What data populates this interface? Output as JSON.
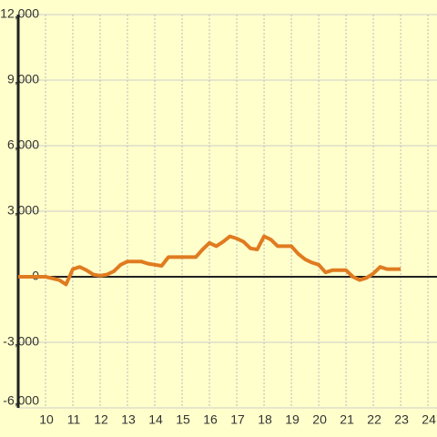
{
  "chart_data": {
    "type": "line",
    "x": [
      9,
      10,
      10.5,
      10.75,
      11,
      11.25,
      11.5,
      11.75,
      12,
      12.25,
      12.5,
      12.75,
      13,
      13.5,
      13.75,
      14,
      14.25,
      14.5,
      15,
      15.5,
      15.75,
      16,
      16.25,
      16.5,
      16.75,
      17,
      17.25,
      17.5,
      17.75,
      18,
      18.25,
      18.5,
      19,
      19.25,
      19.5,
      19.75,
      20,
      20.25,
      20.5,
      21,
      21.25,
      21.5,
      21.75,
      22,
      22.25,
      22.5,
      23
    ],
    "series": [
      {
        "color": "#e07b20",
        "values": [
          0,
          0,
          -150,
          -350,
          350,
          450,
          300,
          100,
          50,
          100,
          250,
          550,
          700,
          700,
          600,
          550,
          500,
          900,
          900,
          900,
          1250,
          1550,
          1400,
          1600,
          1850,
          1750,
          1600,
          1300,
          1250,
          1850,
          1700,
          1400,
          1400,
          1050,
          800,
          650,
          550,
          200,
          300,
          300,
          0,
          -150,
          -50,
          150,
          450,
          350,
          350
        ]
      }
    ],
    "xlim": [
      9,
      24.33
    ],
    "xticks": [
      10,
      11,
      12,
      13,
      14,
      15,
      16,
      17,
      18,
      19,
      20,
      21,
      22,
      23,
      24
    ],
    "ylim": [
      -6000,
      12000
    ],
    "yticks": [
      {
        "value": -6000,
        "label": "-6,000"
      },
      {
        "value": -3000,
        "label": "-3,000"
      },
      0,
      {
        "value": 3000,
        "label": "3,000"
      },
      {
        "value": 6000,
        "label": "6,000"
      },
      {
        "value": 9000,
        "label": "9,000"
      },
      {
        "value": 12000,
        "label": "12,000"
      }
    ],
    "grid": true
  }
}
